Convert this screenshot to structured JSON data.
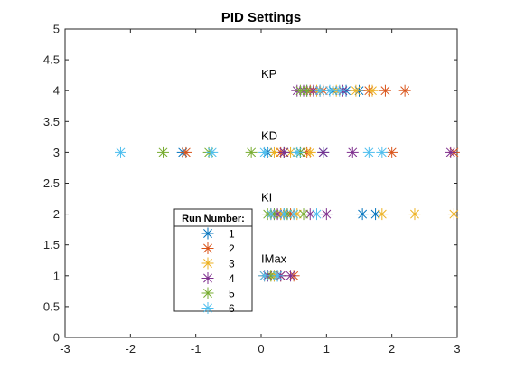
{
  "chart_data": {
    "type": "scatter",
    "title": "PID Settings",
    "xlabel": "",
    "ylabel": "",
    "xlim": [
      -3,
      3
    ],
    "ylim": [
      0,
      5
    ],
    "xticks": [
      "-3",
      "-2",
      "-1",
      "0",
      "1",
      "2",
      "3"
    ],
    "yticks": [
      "0",
      "0.5",
      "1",
      "1.5",
      "2",
      "2.5",
      "3",
      "3.5",
      "4",
      "4.5",
      "5"
    ],
    "grid": false,
    "marker": "asterisk",
    "annotations": [
      {
        "text": "KP",
        "x": 0.0,
        "y": 4.28
      },
      {
        "text": "KD",
        "x": 0.0,
        "y": 3.28
      },
      {
        "text": "KI",
        "x": 0.0,
        "y": 2.28
      },
      {
        "text": "IMax",
        "x": 0.0,
        "y": 1.28
      }
    ],
    "legend": {
      "title": "Run Number:",
      "placement": "lower-left-center"
    },
    "colors": [
      "#0072BD",
      "#D95319",
      "#EDB120",
      "#7E2F8E",
      "#77AC30",
      "#4DBEEE"
    ],
    "series": [
      {
        "name": "1",
        "points": [
          {
            "x": 0.7,
            "y": 4
          },
          {
            "x": 0.9,
            "y": 4
          },
          {
            "x": 1.1,
            "y": 4
          },
          {
            "x": 1.3,
            "y": 4
          },
          {
            "x": 1.5,
            "y": 4
          },
          {
            "x": -1.2,
            "y": 3
          },
          {
            "x": 0.1,
            "y": 3
          },
          {
            "x": 0.35,
            "y": 3
          },
          {
            "x": 0.6,
            "y": 3
          },
          {
            "x": 0.95,
            "y": 3
          },
          {
            "x": 0.2,
            "y": 2
          },
          {
            "x": 0.35,
            "y": 2
          },
          {
            "x": 0.4,
            "y": 2
          },
          {
            "x": 1.55,
            "y": 2
          },
          {
            "x": 1.75,
            "y": 2
          },
          {
            "x": 0.1,
            "y": 1
          },
          {
            "x": 0.2,
            "y": 1
          },
          {
            "x": 0.25,
            "y": 1
          }
        ]
      },
      {
        "name": "2",
        "points": [
          {
            "x": 0.75,
            "y": 4
          },
          {
            "x": 0.95,
            "y": 4
          },
          {
            "x": 1.65,
            "y": 4
          },
          {
            "x": 1.9,
            "y": 4
          },
          {
            "x": 2.2,
            "y": 4
          },
          {
            "x": -1.15,
            "y": 3
          },
          {
            "x": 0.3,
            "y": 3
          },
          {
            "x": 0.7,
            "y": 3
          },
          {
            "x": 2.0,
            "y": 3
          },
          {
            "x": 2.95,
            "y": 3
          },
          {
            "x": 0.15,
            "y": 2
          },
          {
            "x": 0.3,
            "y": 2
          },
          {
            "x": 0.45,
            "y": 2
          },
          {
            "x": 0.05,
            "y": 1
          },
          {
            "x": 0.3,
            "y": 1
          },
          {
            "x": 0.5,
            "y": 1
          }
        ]
      },
      {
        "name": "3",
        "points": [
          {
            "x": 0.85,
            "y": 4
          },
          {
            "x": 1.15,
            "y": 4
          },
          {
            "x": 1.45,
            "y": 4
          },
          {
            "x": 1.7,
            "y": 4
          },
          {
            "x": 0.2,
            "y": 3
          },
          {
            "x": 0.45,
            "y": 3
          },
          {
            "x": 0.75,
            "y": 3
          },
          {
            "x": 0.3,
            "y": 2
          },
          {
            "x": 0.55,
            "y": 2
          },
          {
            "x": 1.85,
            "y": 2
          },
          {
            "x": 2.35,
            "y": 2
          },
          {
            "x": 2.95,
            "y": 2
          },
          {
            "x": 0.15,
            "y": 1
          },
          {
            "x": 0.2,
            "y": 1
          }
        ]
      },
      {
        "name": "4",
        "points": [
          {
            "x": 0.55,
            "y": 4
          },
          {
            "x": 0.65,
            "y": 4
          },
          {
            "x": 0.8,
            "y": 4
          },
          {
            "x": 1.25,
            "y": 4
          },
          {
            "x": 0.35,
            "y": 3
          },
          {
            "x": 0.95,
            "y": 3
          },
          {
            "x": 1.4,
            "y": 3
          },
          {
            "x": 2.9,
            "y": 3
          },
          {
            "x": 0.25,
            "y": 2
          },
          {
            "x": 0.75,
            "y": 2
          },
          {
            "x": 1.0,
            "y": 2
          },
          {
            "x": 0.1,
            "y": 1
          },
          {
            "x": 0.3,
            "y": 1
          },
          {
            "x": 0.45,
            "y": 1
          }
        ]
      },
      {
        "name": "5",
        "points": [
          {
            "x": 0.6,
            "y": 4
          },
          {
            "x": 0.7,
            "y": 4
          },
          {
            "x": -1.5,
            "y": 3
          },
          {
            "x": -0.8,
            "y": 3
          },
          {
            "x": -0.15,
            "y": 3
          },
          {
            "x": 0.6,
            "y": 3
          },
          {
            "x": 0.1,
            "y": 2
          },
          {
            "x": 0.2,
            "y": 2
          },
          {
            "x": 0.4,
            "y": 2
          },
          {
            "x": 0.65,
            "y": 2
          },
          {
            "x": 0.15,
            "y": 1
          }
        ]
      },
      {
        "name": "6",
        "points": [
          {
            "x": 0.9,
            "y": 4
          },
          {
            "x": 1.05,
            "y": 4
          },
          {
            "x": 1.2,
            "y": 4
          },
          {
            "x": -2.15,
            "y": 3
          },
          {
            "x": -0.75,
            "y": 3
          },
          {
            "x": 0.05,
            "y": 3
          },
          {
            "x": 0.55,
            "y": 3
          },
          {
            "x": 1.65,
            "y": 3
          },
          {
            "x": 1.85,
            "y": 3
          },
          {
            "x": 0.15,
            "y": 2
          },
          {
            "x": 0.35,
            "y": 2
          },
          {
            "x": 0.5,
            "y": 2
          },
          {
            "x": 0.85,
            "y": 2
          },
          {
            "x": 0.05,
            "y": 1
          },
          {
            "x": 0.25,
            "y": 1
          }
        ]
      }
    ]
  }
}
